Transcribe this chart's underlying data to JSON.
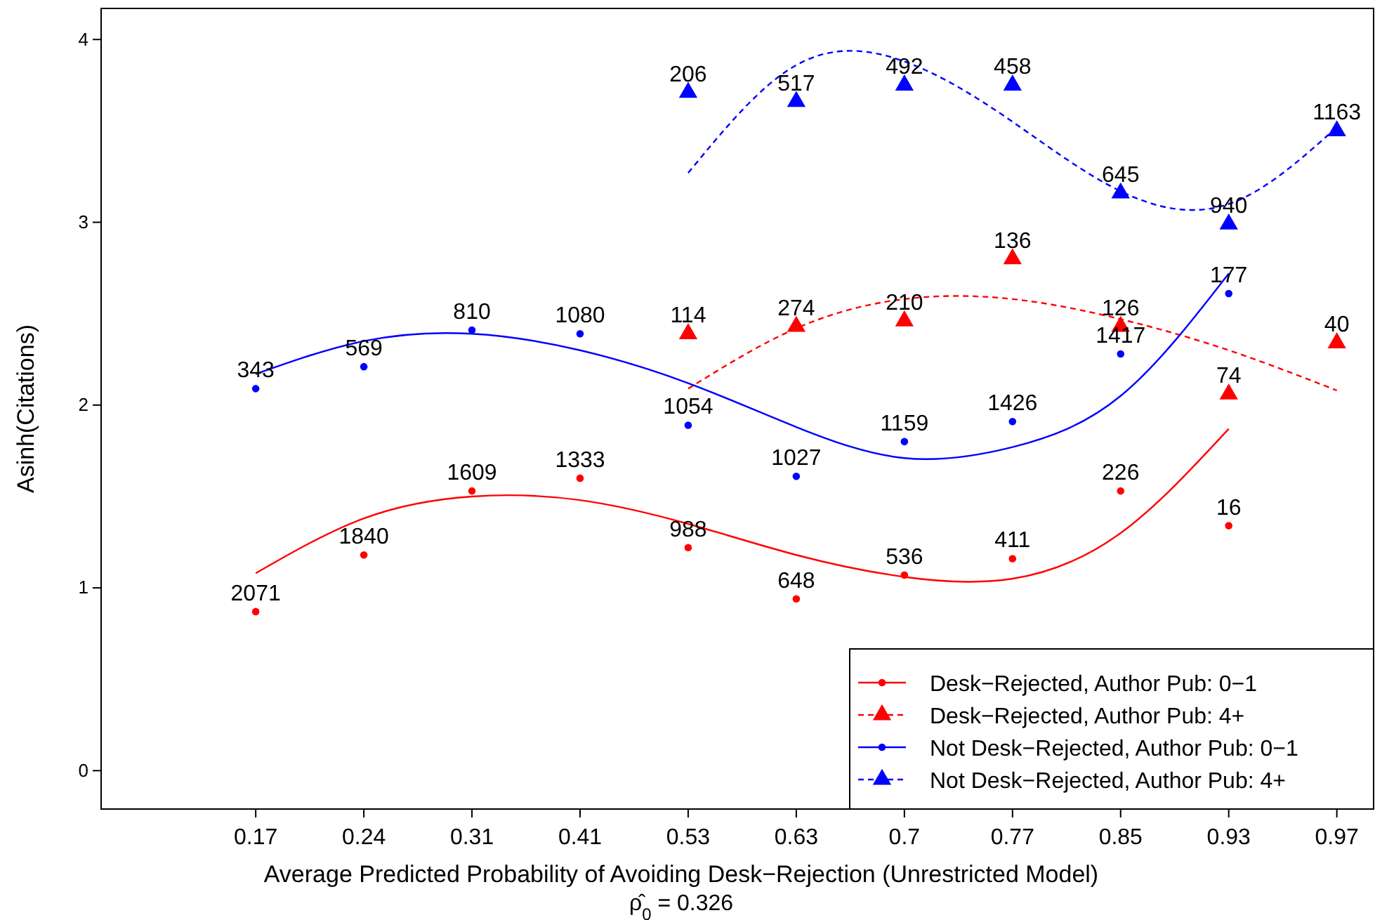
{
  "chart_data": {
    "type": "scatter",
    "xlabel": "Average Predicted Probability of Avoiding Desk−Rejection (Unrestricted Model)",
    "ylabel": "Asinh(Citations)",
    "categories": [
      "0.17",
      "0.24",
      "0.31",
      "0.41",
      "0.53",
      "0.63",
      "0.7",
      "0.77",
      "0.85",
      "0.93",
      "0.97"
    ],
    "annotations": [
      "ρ̂$_{0}$ = 0.326",
      {
        "text": "2071",
        "x": "0.17",
        "y": 0.87
      },
      {
        "text": "1840",
        "x": "0.24",
        "y": 1.18
      },
      {
        "text": "1609",
        "x": "0.31",
        "y": 1.53
      },
      {
        "text": "1333",
        "x": "0.41",
        "y": 1.6
      },
      {
        "text": "988",
        "x": "0.53",
        "y": 1.22
      },
      {
        "text": "648",
        "x": "0.63",
        "y": 0.94
      },
      {
        "text": "536",
        "x": "0.7",
        "y": 1.07
      },
      {
        "text": "411",
        "x": "0.77",
        "y": 1.16
      },
      {
        "text": "226",
        "x": "0.85",
        "y": 1.53
      },
      {
        "text": "16",
        "x": "0.93",
        "y": 1.34
      },
      {
        "text": "114",
        "x": "0.53",
        "y": 2.39
      },
      {
        "text": "274",
        "x": "0.63",
        "y": 2.43
      },
      {
        "text": "210",
        "x": "0.7",
        "y": 2.46
      },
      {
        "text": "136",
        "x": "0.77",
        "y": 2.8
      },
      {
        "text": "126",
        "x": "0.85",
        "y": 2.43
      },
      {
        "text": "74",
        "x": "0.93",
        "y": 2.06
      },
      {
        "text": "40",
        "x": "0.97",
        "y": 2.34
      },
      {
        "text": "343",
        "x": "0.17",
        "y": 2.09
      },
      {
        "text": "569",
        "x": "0.24",
        "y": 2.21
      },
      {
        "text": "810",
        "x": "0.31",
        "y": 2.41
      },
      {
        "text": "1080",
        "x": "0.41",
        "y": 2.39
      },
      {
        "text": "1054",
        "x": "0.53",
        "y": 1.89
      },
      {
        "text": "1027",
        "x": "0.63",
        "y": 1.61
      },
      {
        "text": "1159",
        "x": "0.7",
        "y": 1.8
      },
      {
        "text": "1426",
        "x": "0.77",
        "y": 1.91
      },
      {
        "text": "1417",
        "x": "0.85",
        "y": 2.28
      },
      {
        "text": "177",
        "x": "0.93",
        "y": 2.61
      },
      {
        "text": "206",
        "x": "0.53",
        "y": 3.71
      },
      {
        "text": "517",
        "x": "0.63",
        "y": 3.66
      },
      {
        "text": "492",
        "x": "0.7",
        "y": 3.75
      },
      {
        "text": "458",
        "x": "0.77",
        "y": 3.75
      },
      {
        "text": "645",
        "x": "0.85",
        "y": 3.16
      },
      {
        "text": "940",
        "x": "0.93",
        "y": 2.99
      },
      {
        "text": "1163",
        "x": "0.97",
        "y": 3.5
      }
    ],
    "ylim": [
      -0.21,
      4.17
    ],
    "yticks": [
      0,
      1,
      2,
      3,
      4
    ],
    "legend": "bottom right",
    "series": [
      {
        "name": "Desk−Rejected, Author Pub: 0−1",
        "marker": "circle",
        "color": "#ff0000",
        "values": [
          0.87,
          1.18,
          1.53,
          1.6,
          1.22,
          0.94,
          1.07,
          1.16,
          1.53,
          1.34,
          null
        ]
      },
      {
        "type": "line",
        "line_style": "solid",
        "color": "#ff0000",
        "values": [
          1.08,
          1.38,
          1.5,
          1.48,
          1.35,
          1.18,
          1.06,
          1.05,
          1.3,
          1.87,
          null
        ]
      },
      {
        "name": "Desk−Rejected, Author Pub: 4+",
        "marker": "triangle",
        "color": "#ff0000",
        "values": [
          null,
          null,
          null,
          null,
          2.39,
          2.43,
          2.46,
          2.8,
          2.43,
          2.06,
          2.34
        ]
      },
      {
        "type": "line",
        "line_style": "dashed",
        "color": "#ff0000",
        "values": [
          null,
          null,
          null,
          null,
          2.09,
          2.42,
          2.58,
          2.58,
          2.47,
          2.3,
          2.08
        ]
      },
      {
        "name": "Not Desk−Rejected, Author Pub: 0−1",
        "marker": "circle",
        "color": "#0000ff",
        "values": [
          2.09,
          2.21,
          2.41,
          2.39,
          1.89,
          1.61,
          1.8,
          1.91,
          2.28,
          2.61,
          null
        ]
      },
      {
        "type": "line",
        "line_style": "solid",
        "color": "#0000ff",
        "values": [
          2.17,
          2.35,
          2.39,
          2.3,
          2.12,
          1.88,
          1.71,
          1.77,
          2.05,
          2.72,
          null
        ]
      },
      {
        "name": "Not Desk−Rejected, Author Pub: 4+",
        "marker": "triangle",
        "color": "#0000ff",
        "values": [
          null,
          null,
          null,
          null,
          3.71,
          3.66,
          3.75,
          3.75,
          3.16,
          2.99,
          3.5
        ]
      },
      {
        "type": "line",
        "line_style": "dashed",
        "color": "#0000ff",
        "values": [
          null,
          null,
          null,
          null,
          3.27,
          3.86,
          3.88,
          3.55,
          3.17,
          3.1,
          3.52
        ]
      }
    ]
  }
}
